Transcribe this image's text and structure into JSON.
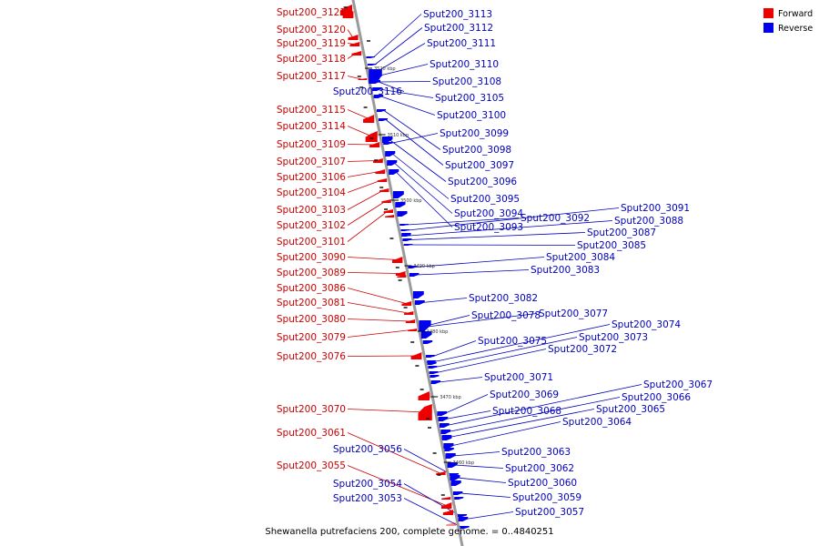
{
  "caption": "Shewanella putrefaciens 200, complete genome. = 0..4840251",
  "legend": {
    "forward_label": "Forward",
    "reverse_label": "Reverse",
    "forward_color": "#ee0000",
    "reverse_color": "#0000ee"
  },
  "colors": {
    "backbone": "#9a9a9a",
    "forward_label": "#cc0000",
    "reverse_label": "#0000bb"
  },
  "ticks": [
    "3520 kbp",
    "3510 kbp",
    "3500 kbp",
    "3490 kbp",
    "3480 kbp",
    "3470 kbp",
    "3460 kbp"
  ],
  "forward_genes": [
    "Sput200_3121",
    "Sput200_3120",
    "Sput200_3119",
    "Sput200_3118",
    "Sput200_3117",
    "Sput200_3115",
    "Sput200_3114",
    "Sput200_3109",
    "Sput200_3107",
    "Sput200_3106",
    "Sput200_3104",
    "Sput200_3103",
    "Sput200_3102",
    "Sput200_3101",
    "Sput200_3090",
    "Sput200_3089",
    "Sput200_3086",
    "Sput200_3081",
    "Sput200_3080",
    "Sput200_3079",
    "Sput200_3076",
    "Sput200_3070",
    "Sput200_3061",
    "Sput200_3055"
  ],
  "reverse_genes_left": [
    "Sput200_3116",
    "Sput200_3056",
    "Sput200_3054",
    "Sput200_3053"
  ],
  "reverse_genes_right": [
    "Sput200_3113",
    "Sput200_3112",
    "Sput200_3111",
    "Sput200_3110",
    "Sput200_3108",
    "Sput200_3105",
    "Sput200_3100",
    "Sput200_3099",
    "Sput200_3098",
    "Sput200_3097",
    "Sput200_3096",
    "Sput200_3095",
    "Sput200_3094",
    "Sput200_3093",
    "Sput200_3092",
    "Sput200_3091",
    "Sput200_3088",
    "Sput200_3087",
    "Sput200_3085",
    "Sput200_3084",
    "Sput200_3083",
    "Sput200_3082",
    "Sput200_3078",
    "Sput200_3077",
    "Sput200_3075",
    "Sput200_3074",
    "Sput200_3073",
    "Sput200_3072",
    "Sput200_3071",
    "Sput200_3069",
    "Sput200_3068",
    "Sput200_3067",
    "Sput200_3066",
    "Sput200_3065",
    "Sput200_3064",
    "Sput200_3063",
    "Sput200_3062",
    "Sput200_3060",
    "Sput200_3059",
    "Sput200_3057"
  ]
}
